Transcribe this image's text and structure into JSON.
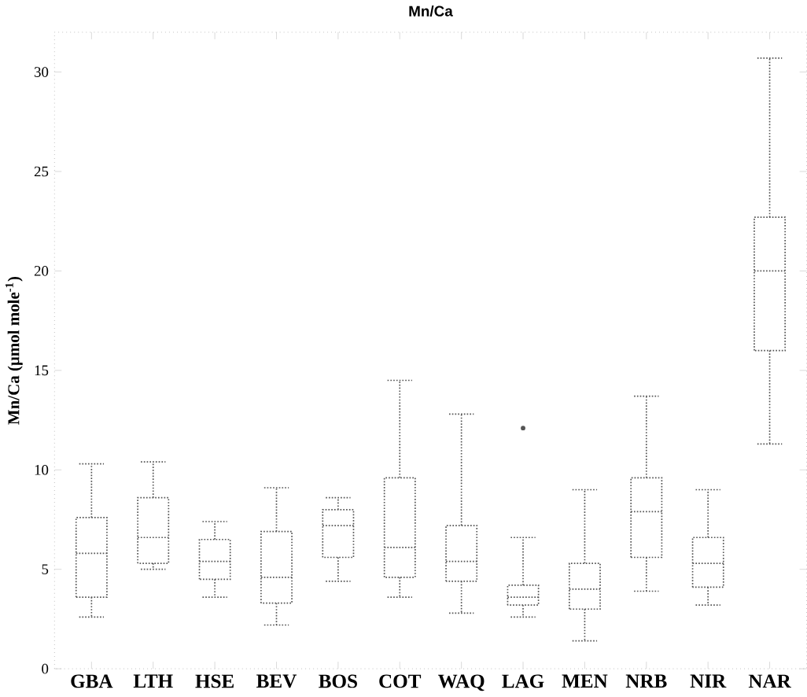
{
  "chart_data": {
    "type": "box",
    "title": "Mn/Ca",
    "ylabel": "Mn/Ca (μmol mole$^{-1}$)",
    "color": "#555555",
    "categories": [
      "GBA",
      "LTH",
      "HSE",
      "BEV",
      "BOS",
      "COT",
      "WAQ",
      "LAG",
      "MEN",
      "NRB",
      "NIR",
      "NAR"
    ],
    "boxes": [
      {
        "low": 2.6,
        "q1": 3.6,
        "median": 5.8,
        "q3": 7.6,
        "high": 10.3
      },
      {
        "low": 5.0,
        "q1": 5.3,
        "median": 6.6,
        "q3": 8.6,
        "high": 10.4
      },
      {
        "low": 3.6,
        "q1": 4.5,
        "median": 5.4,
        "q3": 6.5,
        "high": 7.4
      },
      {
        "low": 2.2,
        "q1": 3.3,
        "median": 4.6,
        "q3": 6.9,
        "high": 9.1
      },
      {
        "low": 4.4,
        "q1": 5.6,
        "median": 7.2,
        "q3": 8.0,
        "high": 8.6
      },
      {
        "low": 3.6,
        "q1": 4.6,
        "median": 6.1,
        "q3": 9.6,
        "high": 14.5
      },
      {
        "low": 2.8,
        "q1": 4.4,
        "median": 5.4,
        "q3": 7.2,
        "high": 12.8
      },
      {
        "low": 2.6,
        "q1": 3.2,
        "median": 3.6,
        "q3": 4.2,
        "high": 6.6,
        "outliers": [
          12.1
        ]
      },
      {
        "low": 1.4,
        "q1": 3.0,
        "median": 4.0,
        "q3": 5.3,
        "high": 9.0
      },
      {
        "low": 3.9,
        "q1": 5.6,
        "median": 7.9,
        "q3": 9.6,
        "high": 13.7
      },
      {
        "low": 3.2,
        "q1": 4.1,
        "median": 5.3,
        "q3": 6.6,
        "high": 9.0
      },
      {
        "low": 11.3,
        "q1": 16.0,
        "median": 20.0,
        "q3": 22.7,
        "high": 30.7
      }
    ],
    "ylim": [
      0,
      32
    ],
    "yticks": [
      0,
      5,
      10,
      15,
      20,
      25,
      30
    ]
  }
}
